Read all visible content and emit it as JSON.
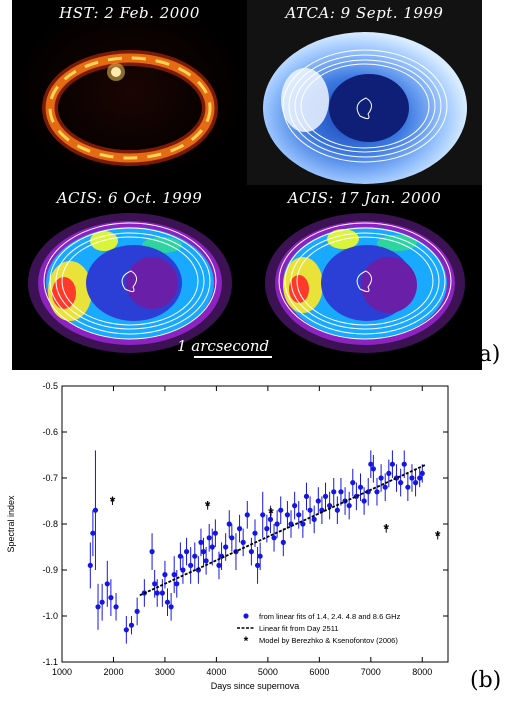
{
  "panel_a": {
    "label": "(a)",
    "panels": [
      {
        "title": "HST: 2 Feb. 2000"
      },
      {
        "title": "ATCA: 9 Sept. 1999"
      },
      {
        "title": "ACIS: 6 Oct. 1999"
      },
      {
        "title": "ACIS: 17 Jan. 2000"
      }
    ],
    "scale_label": "1 arcsecond"
  },
  "panel_b": {
    "label": "(b)"
  },
  "chart_data": {
    "type": "scatter",
    "xlabel": "Days since supernova",
    "ylabel": "Spectral index",
    "xlim": [
      1000,
      8500
    ],
    "ylim": [
      -1.1,
      -0.5
    ],
    "xticks": [
      1000,
      2000,
      3000,
      4000,
      5000,
      6000,
      7000,
      8000
    ],
    "yticks": [
      -1.1,
      -1.0,
      -0.9,
      -0.8,
      -0.7,
      -0.6,
      -0.5
    ],
    "xtick_labels": [
      "1000",
      "2000",
      "3000",
      "4000",
      "5000",
      "6000",
      "7000",
      "8000"
    ],
    "ytick_labels": [
      "-1.1",
      "-1.0",
      "-0.9",
      "-0.8",
      "-0.7",
      "-0.6",
      "-0.5"
    ],
    "legend_position": "bottom-right",
    "colors": {
      "points": "#1515e6",
      "fit": "#000000",
      "model": "#000000"
    },
    "series": [
      {
        "name": "from linear fits of 1.4, 2.4. 4.8 and 8.6 GHz",
        "type": "scatter",
        "points": [
          [
            1550,
            -0.89,
            0.05
          ],
          [
            1600,
            -0.82,
            0.05
          ],
          [
            1650,
            -0.77,
            0.13
          ],
          [
            1700,
            -0.98,
            0.05
          ],
          [
            1780,
            -0.97,
            0.04
          ],
          [
            1880,
            -0.93,
            0.05
          ],
          [
            1950,
            -0.96,
            0.04
          ],
          [
            2050,
            -0.98,
            0.03
          ],
          [
            2250,
            -1.03,
            0.03
          ],
          [
            2350,
            -1.02,
            0.02
          ],
          [
            2460,
            -0.99,
            0.03
          ],
          [
            2600,
            -0.95,
            0.03
          ],
          [
            2750,
            -0.86,
            0.04
          ],
          [
            2800,
            -0.93,
            0.03
          ],
          [
            2850,
            -0.95,
            0.03
          ],
          [
            2950,
            -0.95,
            0.03
          ],
          [
            3000,
            -0.91,
            0.03
          ],
          [
            3050,
            -0.97,
            0.03
          ],
          [
            3120,
            -0.98,
            0.03
          ],
          [
            3180,
            -0.91,
            0.04
          ],
          [
            3230,
            -0.93,
            0.03
          ],
          [
            3300,
            -0.87,
            0.03
          ],
          [
            3350,
            -0.9,
            0.03
          ],
          [
            3420,
            -0.86,
            0.03
          ],
          [
            3500,
            -0.89,
            0.04
          ],
          [
            3580,
            -0.87,
            0.03
          ],
          [
            3650,
            -0.9,
            0.03
          ],
          [
            3700,
            -0.84,
            0.03
          ],
          [
            3750,
            -0.86,
            0.03
          ],
          [
            3800,
            -0.88,
            0.03
          ],
          [
            3860,
            -0.83,
            0.03
          ],
          [
            3920,
            -0.85,
            0.04
          ],
          [
            3980,
            -0.82,
            0.03
          ],
          [
            4050,
            -0.89,
            0.03
          ],
          [
            4100,
            -0.87,
            0.03
          ],
          [
            4180,
            -0.85,
            0.03
          ],
          [
            4250,
            -0.8,
            0.03
          ],
          [
            4300,
            -0.83,
            0.03
          ],
          [
            4380,
            -0.86,
            0.04
          ],
          [
            4450,
            -0.81,
            0.03
          ],
          [
            4520,
            -0.84,
            0.03
          ],
          [
            4600,
            -0.78,
            0.03
          ],
          [
            4680,
            -0.86,
            0.03
          ],
          [
            4750,
            -0.82,
            0.03
          ],
          [
            4800,
            -0.89,
            0.04
          ],
          [
            4850,
            -0.87,
            0.03
          ],
          [
            4900,
            -0.78,
            0.05
          ],
          [
            4980,
            -0.81,
            0.03
          ],
          [
            5050,
            -0.79,
            0.03
          ],
          [
            5120,
            -0.83,
            0.03
          ],
          [
            5180,
            -0.8,
            0.03
          ],
          [
            5250,
            -0.77,
            0.03
          ],
          [
            5300,
            -0.84,
            0.03
          ],
          [
            5380,
            -0.78,
            0.03
          ],
          [
            5450,
            -0.8,
            0.03
          ],
          [
            5520,
            -0.76,
            0.03
          ],
          [
            5600,
            -0.78,
            0.03
          ],
          [
            5680,
            -0.8,
            0.03
          ],
          [
            5750,
            -0.74,
            0.03
          ],
          [
            5820,
            -0.77,
            0.03
          ],
          [
            5900,
            -0.79,
            0.03
          ],
          [
            5980,
            -0.75,
            0.03
          ],
          [
            6050,
            -0.77,
            0.03
          ],
          [
            6120,
            -0.74,
            0.03
          ],
          [
            6200,
            -0.76,
            0.03
          ],
          [
            6280,
            -0.73,
            0.03
          ],
          [
            6350,
            -0.77,
            0.03
          ],
          [
            6420,
            -0.73,
            0.03
          ],
          [
            6500,
            -0.75,
            0.03
          ],
          [
            6580,
            -0.76,
            0.03
          ],
          [
            6650,
            -0.71,
            0.03
          ],
          [
            6720,
            -0.74,
            0.03
          ],
          [
            6800,
            -0.72,
            0.03
          ],
          [
            6870,
            -0.75,
            0.03
          ],
          [
            6950,
            -0.73,
            0.03
          ],
          [
            7000,
            -0.67,
            0.03
          ],
          [
            7050,
            -0.68,
            0.03
          ],
          [
            7120,
            -0.73,
            0.03
          ],
          [
            7200,
            -0.7,
            0.03
          ],
          [
            7280,
            -0.72,
            0.03
          ],
          [
            7350,
            -0.69,
            0.03
          ],
          [
            7420,
            -0.67,
            0.03
          ],
          [
            7500,
            -0.7,
            0.03
          ],
          [
            7580,
            -0.71,
            0.03
          ],
          [
            7650,
            -0.67,
            0.03
          ],
          [
            7720,
            -0.72,
            0.03
          ],
          [
            7800,
            -0.7,
            0.03
          ],
          [
            7870,
            -0.71,
            0.03
          ],
          [
            7950,
            -0.7,
            0.02
          ],
          [
            8000,
            -0.69,
            0.02
          ]
        ]
      },
      {
        "name": "Linear fit from Day 2511",
        "type": "line",
        "x": [
          2511,
          8050
        ],
        "y": [
          -0.955,
          -0.672
        ]
      },
      {
        "name": "Model by Berezhko & Ksenofontov (2006)",
        "type": "scatter",
        "marker": "star",
        "points": [
          [
            1980,
            -0.75
          ],
          [
            3830,
            -0.76
          ],
          [
            5060,
            -0.775
          ],
          [
            7300,
            -0.81
          ],
          [
            8300,
            -0.825
          ]
        ]
      }
    ]
  }
}
